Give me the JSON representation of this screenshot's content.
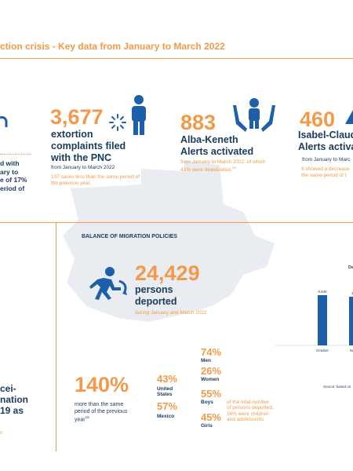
{
  "header": {
    "title": "ction crisis - Key data from January to March 2022"
  },
  "stats": {
    "left_partial": {
      "line1": "d with",
      "line2": "ary to",
      "line3": "e of 17%",
      "line4": "eriod of"
    },
    "extortion": {
      "number": "3,677",
      "line1": "extortion",
      "line2": "complaints filed",
      "line3": "with the PNC",
      "period": "from January to March 2022",
      "note1": "107 cases less than the same period of",
      "note2": "the previous year."
    },
    "alba": {
      "number": "883",
      "line1": "Alba-Keneth",
      "line2": "Alerts activated",
      "note1": "from January to March 2022, of which",
      "note2": "41% were deactivated.",
      "note_sup": "16"
    },
    "isabel": {
      "number": "460",
      "line1": "Isabel-Claud",
      "line2": "Alerts activa",
      "period": "from January to Marc",
      "note1": "It showed a decrease",
      "note2": "the same period of t"
    }
  },
  "migration": {
    "heading": "BALANCE OF MIGRATION POLICIES",
    "deported_number": "24,429",
    "deported_line1": "persons",
    "deported_line2": "deported",
    "deported_period": "during January and March 2022",
    "increase_pct": "140%",
    "increase_line1": "more than the same",
    "increase_line2": "period of the previous",
    "increase_line3": "year",
    "increase_sup": "19",
    "countries": [
      {
        "pct": "43%",
        "label1": "United",
        "label2": "States"
      },
      {
        "pct": "57%",
        "label1": "Mexico",
        "label2": ""
      }
    ],
    "demographics": [
      {
        "pct": "74%",
        "label": "Men"
      },
      {
        "pct": "26%",
        "label": "Women"
      },
      {
        "pct": "55%",
        "label": "Boys"
      },
      {
        "pct": "45%",
        "label": "Girls"
      }
    ],
    "demo_note1": "of the total number",
    "demo_note2": "of persons deported,",
    "demo_note3": "16% were children",
    "demo_note4": "and adolescents"
  },
  "left_lower": {
    "line1": "cei-",
    "line2": "nation",
    "line3": "19 as",
    "line4": "n"
  },
  "chart_data": {
    "type": "bar",
    "title": "De",
    "categories": [
      "October",
      "Nov"
    ],
    "values": [
      9648,
      null
    ],
    "value_labels": [
      "9,648",
      "1,"
    ],
    "source": "Source: based on",
    "color": "#1d5fa8"
  },
  "colors": {
    "accent": "#f39a4a",
    "navy": "#1b3a5c",
    "blue": "#1d5fa8",
    "map": "#e9ecf1"
  },
  "icons": [
    "map-of-guatemala",
    "alert-bell-icon",
    "person-icon",
    "family-hands-icon",
    "person-icon-partial",
    "deported-person-icon"
  ]
}
